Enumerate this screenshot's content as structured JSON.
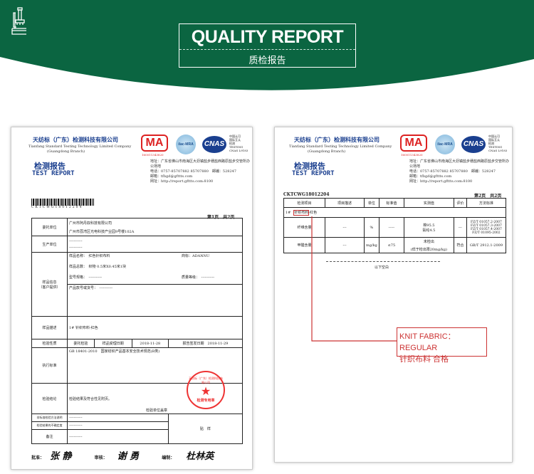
{
  "banner": {
    "title": "QUALITY REPORT",
    "subtitle": "质检报告",
    "icon": "microscope-icon",
    "color": "#0b6541"
  },
  "report_header": {
    "company_cn": "天纺标（广东）检测科技有限公司",
    "company_en": "Tianfang Standard Testing Technology Limited Company",
    "branch": "(Guangdong Branch)",
    "title_cn": "检测报告",
    "title_en": "TEST REPORT",
    "cma": "MA",
    "cma_no": "160011343820",
    "ilac": "ilac-MRA",
    "cnas": "CNAS",
    "cnas_text": [
      "中国认可",
      "国际互认",
      "检测",
      "TESTING",
      "CNAS L9183"
    ],
    "address": "地址：广东省佛山市南海区大沥镇盐步穗盐西路原盐步交管所办公场地",
    "phone": "电话：0757-85707882 85707880　邮编：528247",
    "email": "邮箱：tfbgd@gfttts.com",
    "web": "网址：http://report.gfttts.com:8100"
  },
  "page1": {
    "barcode": "CKTCWG18012204",
    "page": "第1页　共2页",
    "rows": {
      "client_label": "委托单位",
      "client_name": "广州市阿丹奴科技有限公司",
      "client_addr": "广州市荔湾区光电科技产业园9号楼102A",
      "producer_label": "生产单位",
      "dash": "-----------",
      "sample_label": "样品信息\n（客户提供）",
      "name_label": "样品名称：",
      "name": "红色针织布料",
      "brand_label": "商标：",
      "brand": "ADANNU",
      "qty_label": "样品总数：",
      "qty": "织物 0.5米X0.45米1块",
      "model_label": "型号规格：",
      "grade_label": "质量等级：",
      "batch_label": "产品款号或货号：",
      "desc_label": "样品描述",
      "desc": "1# 针织布料-红色",
      "nature_label": "检验性质",
      "nature": "委托检验",
      "recv_label": "样品受理日期",
      "recv": "2018-11-28",
      "issue_label": "报告签发日期",
      "issue": "2018-11-29",
      "std_label": "执行标准",
      "std": "GB 18401-2010　国家纺织产品基本安全技术规范(B类)",
      "concl_label": "检验结论",
      "concl": "检验结果及符合性见附页。",
      "seal_note": "检验单位盖章",
      "nonstd_label": "非标准检验方法说明",
      "uncert_label": "检验结果的不确定度",
      "remark_label": "备注",
      "sticker": "贴　样"
    },
    "stamp": {
      "ring": "天纺标（广东）检测科技有限公司",
      "center": "检测专用章"
    },
    "sign": {
      "approve_label": "批准：",
      "approve": "张 静",
      "review_label": "审核：",
      "review": "谢 勇",
      "prepare_label": "编制：",
      "prepare": "杜林英"
    }
  },
  "page2": {
    "code": "CKTCWG18012204",
    "page": "第2页　共2页",
    "headers": [
      "检测项目",
      "项目描述",
      "单位",
      "标准值",
      "实测值",
      "评价",
      "方法标准"
    ],
    "sample": "1#",
    "sample_name": "针织布料",
    "sample_color": "-红色",
    "r1": {
      "item": "纤维含量",
      "desc": "---",
      "unit": "%",
      "std": "-----",
      "meas1": "棉95.5",
      "meas2": "氨纶4.5",
      "eval": "---",
      "methods": [
        "FZ/T 01057.2-2007",
        "FZ/T 01057.3-2007",
        "FZ/T 01057.4-2007",
        "FZ/T 01095-2002"
      ]
    },
    "r2": {
      "item": "甲醛含量",
      "desc": "---",
      "unit": "mg/kg",
      "std": "≤75",
      "meas1": "未检出",
      "meas2": "(低于检出限20mg/kg)",
      "eval": "符合",
      "method": "GB/T 2912.1-2009"
    },
    "blank": "以下空白"
  },
  "callout": {
    "line1": "KNIT FABRIC：REGULAR",
    "line2": "针织布料 合格",
    "color": "#c33"
  }
}
